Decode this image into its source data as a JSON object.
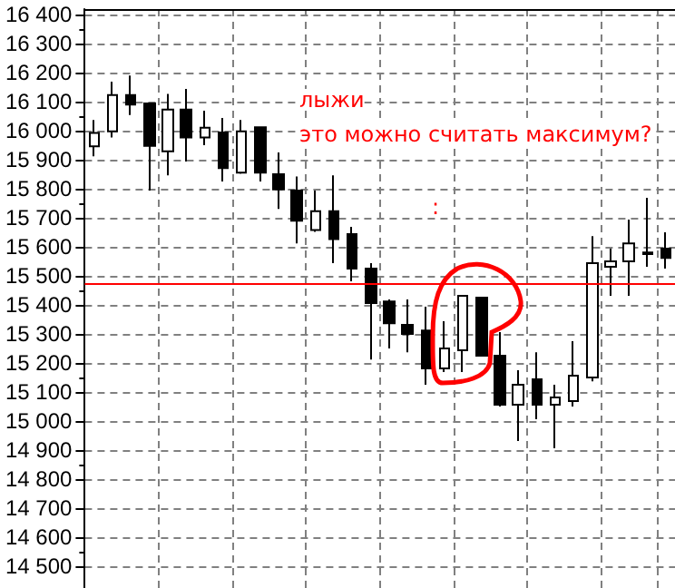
{
  "chart_data": {
    "type": "candlestick",
    "categories": [
      null,
      null,
      null,
      null,
      null,
      null,
      null,
      null,
      null,
      null,
      null,
      null,
      null,
      null,
      null,
      null,
      null,
      null,
      null,
      null,
      null,
      null,
      null,
      null,
      null,
      null,
      null,
      null,
      null,
      null,
      null,
      null
    ],
    "ohlc": [
      [
        15946,
        16037,
        15912,
        15992
      ],
      [
        15998,
        16169,
        15977,
        16123
      ],
      [
        16123,
        16190,
        16054,
        16090
      ],
      [
        16094,
        16094,
        15794,
        15948
      ],
      [
        15929,
        16127,
        15846,
        16073
      ],
      [
        16073,
        16144,
        15894,
        15977
      ],
      [
        15977,
        16069,
        15950,
        16010
      ],
      [
        15994,
        16044,
        15825,
        15871
      ],
      [
        15856,
        16037,
        15852,
        15998
      ],
      [
        16012,
        16012,
        15825,
        15856
      ],
      [
        15850,
        15925,
        15731,
        15798
      ],
      [
        15794,
        15842,
        15612,
        15690
      ],
      [
        15658,
        15794,
        15652,
        15723
      ],
      [
        15723,
        15846,
        15544,
        15627
      ],
      [
        15644,
        15669,
        15481,
        15525
      ],
      [
        15525,
        15544,
        15212,
        15406
      ],
      [
        15412,
        15419,
        15250,
        15337
      ],
      [
        15331,
        15419,
        15237,
        15300
      ],
      [
        15312,
        15394,
        15125,
        15181
      ],
      [
        15181,
        15344,
        15169,
        15250
      ],
      [
        15244,
        15431,
        15169,
        15431
      ],
      [
        15425,
        15425,
        15225,
        15225
      ],
      [
        15225,
        15306,
        15050,
        15056
      ],
      [
        15056,
        15175,
        14931,
        15125
      ],
      [
        15144,
        15237,
        15006,
        15056
      ],
      [
        15056,
        15125,
        14906,
        15081
      ],
      [
        15069,
        15275,
        15050,
        15156
      ],
      [
        15150,
        15637,
        15137,
        15544
      ],
      [
        15531,
        15594,
        15431,
        15550
      ],
      [
        15550,
        15694,
        15431,
        15612
      ],
      [
        15575,
        15769,
        15531,
        15581
      ],
      [
        15594,
        15650,
        15525,
        15562
      ]
    ],
    "color": "#000000",
    "ylim": [
      14425,
      16419
    ],
    "yticks": [
      {
        "value": 14500,
        "label": "14 500"
      },
      {
        "value": 14600,
        "label": "14 600"
      },
      {
        "value": 14700,
        "label": "14 700"
      },
      {
        "value": 14800,
        "label": "14 800"
      },
      {
        "value": 14900,
        "label": "14 900"
      },
      {
        "value": 15000,
        "label": "15 000"
      },
      {
        "value": 15100,
        "label": "15 100"
      },
      {
        "value": 15200,
        "label": "15 200"
      },
      {
        "value": 15300,
        "label": "15 300"
      },
      {
        "value": 15400,
        "label": "15 400"
      },
      {
        "value": 15500,
        "label": "15 500"
      },
      {
        "value": 15600,
        "label": "15 600"
      },
      {
        "value": 15700,
        "label": "15 700"
      },
      {
        "value": 15800,
        "label": "15 800"
      },
      {
        "value": 15900,
        "label": "15 900"
      },
      {
        "value": 16000,
        "label": "16 000"
      },
      {
        "value": 16100,
        "label": "16 100"
      },
      {
        "value": 16200,
        "label": "16 200"
      },
      {
        "value": 16300,
        "label": "16 300"
      },
      {
        "value": 16400,
        "label": "16 400"
      }
    ],
    "grid": true,
    "ref_lines": [
      {
        "axis": "y",
        "value": 15475,
        "color": "#ff0000"
      }
    ],
    "annotations": [
      "лыжи",
      "это можно считать максимум?",
      ":"
    ],
    "tick_labels": "y"
  }
}
